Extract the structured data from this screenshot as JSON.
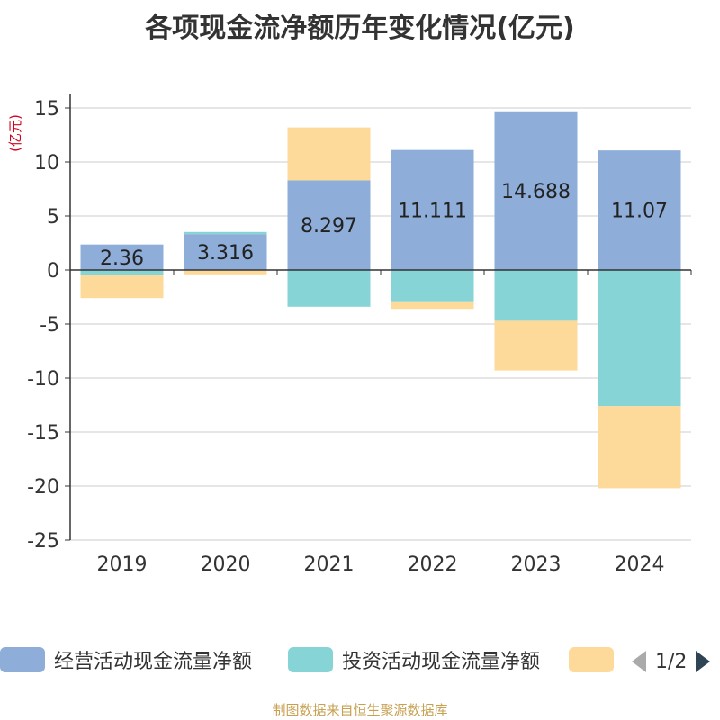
{
  "title": "各项现金流净额历年变化情况(亿元)",
  "unit_label": "(亿元)",
  "source": "制图数据来自恒生聚源数据库",
  "pager": {
    "text": "1/2"
  },
  "colors": {
    "operating": "#8eadd9",
    "investing": "#86d4d6",
    "financing": "#fdd99a",
    "unit_label": "#d0021b",
    "pager_prev": "#aaaaaa",
    "pager_next": "#2f4554"
  },
  "chart_data": {
    "type": "bar",
    "stacked": true,
    "categories": [
      "2019",
      "2020",
      "2021",
      "2022",
      "2023",
      "2024"
    ],
    "ylim": [
      -25,
      15
    ],
    "yticks": [
      15,
      10,
      5,
      0,
      -5,
      -10,
      -15,
      -20,
      -25
    ],
    "grid": true,
    "legend_position": "bottom",
    "series": [
      {
        "name": "经营活动现金流量净额",
        "values": [
          2.36,
          3.316,
          8.297,
          11.111,
          14.688,
          11.07
        ],
        "show_labels": true
      },
      {
        "name": "投资活动现金流量净额",
        "values": [
          -0.5,
          0.2,
          -3.4,
          -2.9,
          -4.7,
          -12.6
        ],
        "show_labels": false
      },
      {
        "name": "",
        "values": [
          -2.1,
          -0.4,
          4.9,
          -0.7,
          -4.6,
          -7.6
        ],
        "show_labels": false
      }
    ]
  }
}
